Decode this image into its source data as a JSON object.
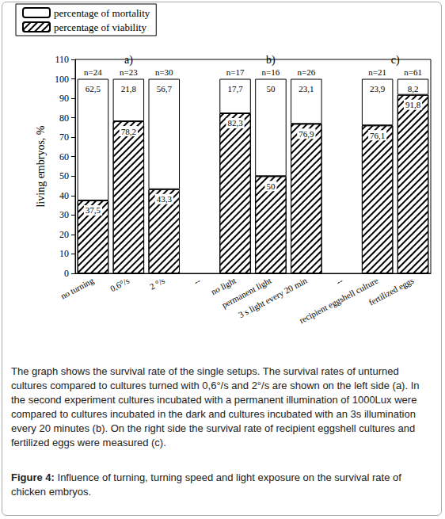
{
  "chart_data": {
    "type": "bar",
    "stacked": true,
    "data_labels": true,
    "grid": false,
    "legend": "upper left",
    "figure_label": "Figure 4:",
    "title": "Influence of turning, turning speed and light exposure on the survival rate of chicken embryos.",
    "caption": "The graph shows the survival rate of the single setups. The survival rates of unturned cultures compared to cultures turned with 0,6°/s and 2°/s are shown on the left side (a). In the second experiment cultures incubated with a permanent illumination of 1000Lux were compared to cultures incubated in the dark and cultures incubated with an 3s illumination every 20 minutes (b). On the right side the survival rate of recipient eggshell cultures and fertilized eggs were measured (c).",
    "ylabel": "living embryos, %",
    "categories": [
      "no turning",
      "0,6°/s",
      "2 °/s",
      "--",
      "no light",
      "permanent light",
      "3 s light every 20 min",
      "--",
      "recipient eggshell culture",
      "fertilized eggs"
    ],
    "n_labels": [
      "n=24",
      "n=23",
      "n=30",
      null,
      "n=17",
      "n=16",
      "n=26",
      null,
      "n=21",
      "n=61"
    ],
    "groups": [
      {
        "label": "a)",
        "categories": [
          "no turning",
          "0,6°/s",
          "2 °/s"
        ]
      },
      {
        "label": "b)",
        "categories": [
          "no light",
          "permanent light",
          "3 s light every 20 min"
        ]
      },
      {
        "label": "c)",
        "categories": [
          "recipient eggshell culture",
          "fertilized eggs"
        ]
      }
    ],
    "series": [
      {
        "name": "percentage of mortality",
        "color": "#ffffff",
        "values": [
          62.5,
          21.8,
          56.7,
          null,
          17.7,
          50,
          23.1,
          null,
          23.9,
          8.2
        ],
        "value_labels": [
          "62,5",
          "21,8",
          "56,7",
          null,
          "17,7",
          "50",
          "23,1",
          null,
          "23,9",
          "8,2"
        ]
      },
      {
        "name": "percentage of viability",
        "color": "#000000",
        "values": [
          37.5,
          78.2,
          43.3,
          null,
          82.3,
          50,
          76.9,
          null,
          76.1,
          91.8
        ],
        "value_labels": [
          "37,5",
          "78,2",
          "43,3",
          null,
          "82,3",
          "50",
          "76,9",
          null,
          "76,1",
          "91,8"
        ]
      }
    ],
    "ylim": [
      0,
      110
    ],
    "yticks": [
      0,
      10,
      20,
      30,
      40,
      50,
      60,
      70,
      80,
      90,
      100,
      110
    ]
  }
}
